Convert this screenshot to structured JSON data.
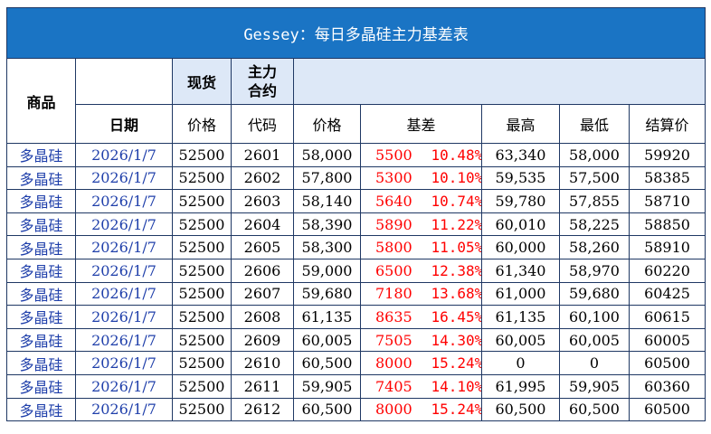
{
  "title": "Gessey：每日多晶硅主力基差表",
  "header": {
    "product": "商品",
    "spot": "现货",
    "main_contract": "主力\n合约",
    "date": "日期",
    "price": "价格",
    "code": "代码",
    "futures_price": "价格",
    "basis": "基差",
    "high": "最高",
    "low": "最低",
    "settle": "结算价"
  },
  "rows": [
    {
      "product": "多晶硅",
      "date": "2026/1/7",
      "spot": "52500",
      "code": "2601",
      "price": "58,000",
      "basis": "5500",
      "pct": "10.48%",
      "high": "63,340",
      "low": "58,000",
      "settle": "59920"
    },
    {
      "product": "多晶硅",
      "date": "2026/1/7",
      "spot": "52500",
      "code": "2602",
      "price": "57,800",
      "basis": "5300",
      "pct": "10.10%",
      "high": "59,535",
      "low": "57,500",
      "settle": "58385"
    },
    {
      "product": "多晶硅",
      "date": "2026/1/7",
      "spot": "52500",
      "code": "2603",
      "price": "58,140",
      "basis": "5640",
      "pct": "10.74%",
      "high": "59,780",
      "low": "57,855",
      "settle": "58710"
    },
    {
      "product": "多晶硅",
      "date": "2026/1/7",
      "spot": "52500",
      "code": "2604",
      "price": "58,390",
      "basis": "5890",
      "pct": "11.22%",
      "high": "60,010",
      "low": "58,225",
      "settle": "58850"
    },
    {
      "product": "多晶硅",
      "date": "2026/1/7",
      "spot": "52500",
      "code": "2605",
      "price": "58,300",
      "basis": "5800",
      "pct": "11.05%",
      "high": "60,000",
      "low": "58,260",
      "settle": "58910"
    },
    {
      "product": "多晶硅",
      "date": "2026/1/7",
      "spot": "52500",
      "code": "2606",
      "price": "59,000",
      "basis": "6500",
      "pct": "12.38%",
      "high": "61,340",
      "low": "58,970",
      "settle": "60220"
    },
    {
      "product": "多晶硅",
      "date": "2026/1/7",
      "spot": "52500",
      "code": "2607",
      "price": "59,680",
      "basis": "7180",
      "pct": "13.68%",
      "high": "61,000",
      "low": "59,680",
      "settle": "60425"
    },
    {
      "product": "多晶硅",
      "date": "2026/1/7",
      "spot": "52500",
      "code": "2608",
      "price": "61,135",
      "basis": "8635",
      "pct": "16.45%",
      "high": "61,135",
      "low": "60,100",
      "settle": "60615"
    },
    {
      "product": "多晶硅",
      "date": "2026/1/7",
      "spot": "52500",
      "code": "2609",
      "price": "60,005",
      "basis": "7505",
      "pct": "14.30%",
      "high": "60,005",
      "low": "60,005",
      "settle": "60005"
    },
    {
      "product": "多晶硅",
      "date": "2026/1/7",
      "spot": "52500",
      "code": "2610",
      "price": "60,500",
      "basis": "8000",
      "pct": "15.24%",
      "high": "0",
      "low": "0",
      "settle": "60500"
    },
    {
      "product": "多晶硅",
      "date": "2026/1/7",
      "spot": "52500",
      "code": "2611",
      "price": "59,905",
      "basis": "7405",
      "pct": "14.10%",
      "high": "61,995",
      "low": "59,905",
      "settle": "60360"
    },
    {
      "product": "多晶硅",
      "date": "2026/1/7",
      "spot": "52500",
      "code": "2612",
      "price": "60,500",
      "basis": "8000",
      "pct": "15.24%",
      "high": "60,500",
      "low": "60,500",
      "settle": "60500"
    }
  ],
  "colors": {
    "title_bg": "#1a74c4",
    "header_bg": "#dde8f7",
    "border": "#1f3864",
    "product_date_text": "#1f3faa",
    "basis_text": "#ff0000"
  }
}
